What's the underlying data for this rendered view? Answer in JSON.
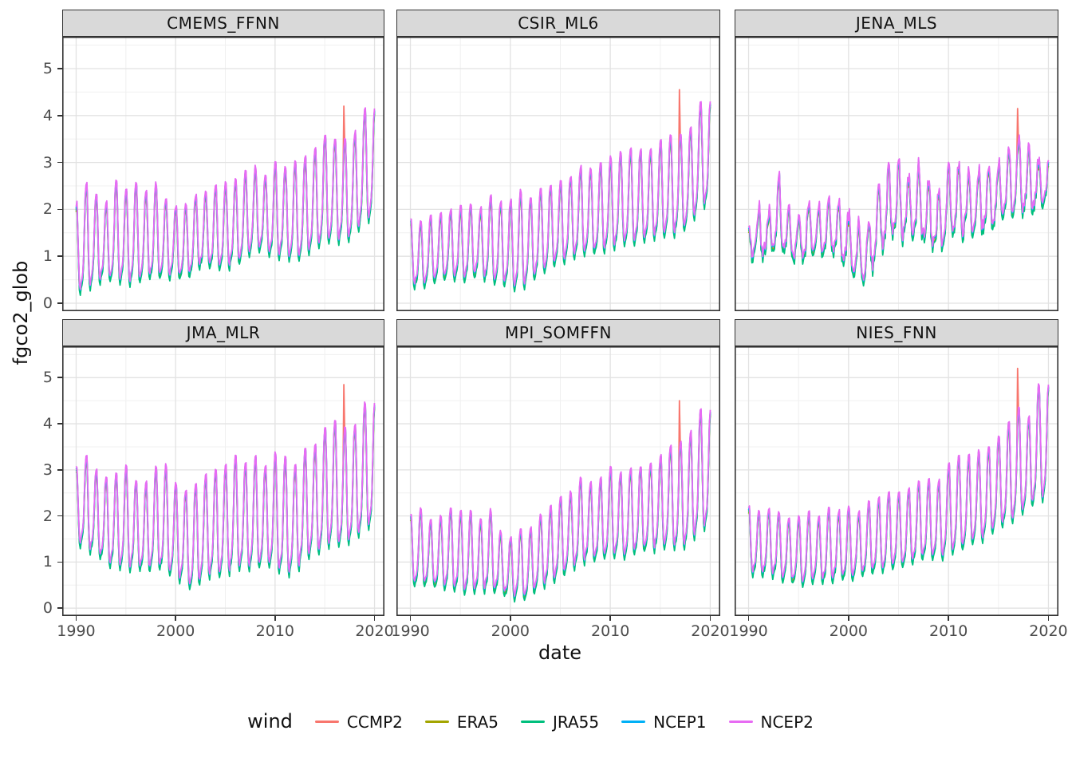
{
  "axes": {
    "x_title": "date",
    "y_title": "fgco2_glob",
    "x_ticks": [
      1990,
      2000,
      2010,
      2020
    ],
    "x_minor": [
      1995,
      2005,
      2015
    ],
    "y_ticks": [
      0,
      1,
      2,
      3,
      4,
      5
    ],
    "y_minor": [
      0.5,
      1.5,
      2.5,
      3.5,
      4.5,
      5.5
    ],
    "x_domain": [
      1988.6,
      2021.0
    ],
    "y_domain": [
      -0.17,
      5.68
    ]
  },
  "legend": {
    "title": "wind",
    "entries": [
      {
        "label": "CCMP2",
        "color": "#F8766D"
      },
      {
        "label": "ERA5",
        "color": "#A3A500"
      },
      {
        "label": "JRA55",
        "color": "#00BF7D"
      },
      {
        "label": "NCEP1",
        "color": "#00B0F6"
      },
      {
        "label": "NCEP2",
        "color": "#E76BF3"
      }
    ]
  },
  "chart_data": {
    "type": "line",
    "x_unit": "monthly, Jan 1990 - Jan 2020",
    "grid": "on",
    "legend_position": "bottom",
    "series": [
      {
        "name": "CCMP2",
        "color": "#F8766D",
        "peak_delta": -0.05,
        "trough_delta": -0.06
      },
      {
        "name": "ERA5",
        "color": "#A3A500",
        "peak_delta": -0.12,
        "trough_delta": -0.1
      },
      {
        "name": "JRA55",
        "color": "#00BF7D",
        "peak_delta": -0.08,
        "trough_delta": -0.13
      },
      {
        "name": "NCEP1",
        "color": "#00B0F6",
        "peak_delta": -0.04,
        "trough_delta": -0.02
      },
      {
        "name": "NCEP2",
        "color": "#E76BF3",
        "peak_delta": 0.0,
        "trough_delta": 0.0
      }
    ],
    "years": [
      1990,
      1991,
      1992,
      1993,
      1994,
      1995,
      1996,
      1997,
      1998,
      1999,
      2000,
      2001,
      2002,
      2003,
      2004,
      2005,
      2006,
      2007,
      2008,
      2009,
      2010,
      2011,
      2012,
      2013,
      2014,
      2015,
      2016,
      2017,
      2018,
      2019
    ],
    "facets": [
      {
        "title": "CMEMS_FFNN",
        "noise": 0.04,
        "peaks": [
          2.1,
          2.55,
          2.35,
          2.1,
          2.65,
          2.45,
          2.6,
          2.4,
          2.55,
          2.2,
          2.05,
          2.1,
          2.3,
          2.35,
          2.5,
          2.55,
          2.65,
          2.8,
          2.9,
          2.7,
          3.0,
          2.9,
          3.0,
          3.1,
          3.3,
          3.6,
          3.5,
          3.5,
          3.6,
          4.15
        ],
        "troughs": [
          0.25,
          0.3,
          0.45,
          0.55,
          0.5,
          0.45,
          0.5,
          0.55,
          0.6,
          0.6,
          0.65,
          0.55,
          0.75,
          0.9,
          0.75,
          0.8,
          0.85,
          1.0,
          1.2,
          1.15,
          1.0,
          1.05,
          0.9,
          1.1,
          1.2,
          1.3,
          1.4,
          1.3,
          1.45,
          1.8
        ],
        "spike": {
          "series": "CCMP2",
          "t": 2016.92,
          "value": 4.2
        }
      },
      {
        "title": "CSIR_ML6",
        "noise": 0.04,
        "peaks": [
          1.8,
          1.75,
          1.85,
          1.9,
          2.0,
          2.05,
          2.1,
          2.0,
          2.3,
          2.15,
          2.2,
          2.4,
          2.25,
          2.45,
          2.5,
          2.6,
          2.7,
          2.9,
          2.85,
          2.95,
          3.1,
          3.2,
          3.3,
          3.25,
          3.3,
          3.45,
          3.6,
          3.6,
          3.7,
          4.3
        ],
        "troughs": [
          0.45,
          0.4,
          0.5,
          0.55,
          0.6,
          0.55,
          0.6,
          0.65,
          0.5,
          0.45,
          0.4,
          0.35,
          0.5,
          0.7,
          0.8,
          0.9,
          1.0,
          1.1,
          1.1,
          1.15,
          1.2,
          1.3,
          1.3,
          1.35,
          1.4,
          1.45,
          1.5,
          1.55,
          1.7,
          2.1
        ],
        "spike": {
          "series": "CCMP2",
          "t": 2016.92,
          "value": 4.55
        }
      },
      {
        "title": "JENA_MLS",
        "noise": 0.15,
        "peaks": [
          1.75,
          2.05,
          1.9,
          2.75,
          2.0,
          1.85,
          2.2,
          2.15,
          2.25,
          2.2,
          1.9,
          1.7,
          1.75,
          2.6,
          2.9,
          2.95,
          2.7,
          3.0,
          2.6,
          2.3,
          2.9,
          2.95,
          2.8,
          2.85,
          2.9,
          3.0,
          3.3,
          3.6,
          3.3,
          3.05
        ],
        "troughs": [
          0.9,
          1.1,
          1.05,
          1.3,
          1.0,
          0.95,
          1.1,
          1.05,
          1.15,
          1.1,
          0.8,
          0.5,
          0.55,
          1.2,
          1.4,
          1.5,
          1.4,
          1.5,
          1.3,
          1.1,
          1.5,
          1.55,
          1.5,
          1.6,
          1.7,
          1.8,
          1.9,
          2.1,
          2.0,
          2.1
        ],
        "spike": {
          "series": "CCMP2",
          "t": 2016.92,
          "value": 4.15
        }
      },
      {
        "title": "JMA_MLR",
        "noise": 0.04,
        "peaks": [
          3.05,
          3.3,
          3.0,
          2.85,
          2.9,
          3.1,
          2.75,
          2.7,
          3.05,
          3.1,
          2.7,
          2.55,
          2.7,
          2.9,
          3.0,
          3.1,
          3.3,
          3.1,
          3.3,
          3.1,
          3.35,
          3.3,
          3.1,
          3.45,
          3.5,
          3.9,
          4.1,
          3.9,
          3.95,
          4.45
        ],
        "troughs": [
          1.45,
          1.35,
          1.2,
          1.0,
          0.95,
          0.85,
          0.9,
          0.8,
          0.95,
          0.8,
          0.75,
          0.5,
          0.45,
          0.75,
          0.7,
          0.8,
          0.85,
          0.9,
          0.9,
          1.0,
          0.85,
          0.75,
          0.8,
          1.1,
          1.2,
          1.3,
          1.4,
          1.4,
          1.5,
          1.75
        ],
        "spike": {
          "series": "CCMP2",
          "t": 2016.92,
          "value": 4.85
        }
      },
      {
        "title": "MPI_SOMFFN",
        "noise": 0.04,
        "peaks": [
          2.0,
          2.15,
          1.9,
          2.0,
          2.2,
          2.1,
          2.1,
          1.9,
          2.15,
          1.65,
          1.55,
          1.75,
          1.7,
          2.0,
          2.2,
          2.4,
          2.5,
          2.8,
          2.75,
          2.8,
          3.05,
          2.95,
          3.0,
          3.05,
          3.15,
          3.3,
          3.5,
          3.6,
          3.8,
          4.3
        ],
        "troughs": [
          0.6,
          0.55,
          0.55,
          0.5,
          0.5,
          0.4,
          0.35,
          0.4,
          0.45,
          0.35,
          0.3,
          0.25,
          0.3,
          0.5,
          0.6,
          0.7,
          0.9,
          1.0,
          1.1,
          1.1,
          1.2,
          1.1,
          1.2,
          1.3,
          1.3,
          1.35,
          1.4,
          1.3,
          1.4,
          1.75
        ],
        "spike": {
          "series": "CCMP2",
          "t": 2016.92,
          "value": 4.5
        }
      },
      {
        "title": "NIES_FNN",
        "noise": 0.04,
        "peaks": [
          2.2,
          2.1,
          2.15,
          2.1,
          1.95,
          2.0,
          2.1,
          2.0,
          2.2,
          2.1,
          2.2,
          2.1,
          2.3,
          2.4,
          2.55,
          2.5,
          2.6,
          2.75,
          2.8,
          2.75,
          3.1,
          3.3,
          3.3,
          3.4,
          3.5,
          3.7,
          4.0,
          4.35,
          4.1,
          4.85
        ],
        "troughs": [
          0.85,
          0.75,
          0.8,
          0.7,
          0.65,
          0.6,
          0.55,
          0.65,
          0.6,
          0.7,
          0.65,
          0.75,
          0.8,
          0.85,
          0.9,
          0.95,
          1.0,
          1.1,
          1.15,
          1.1,
          1.2,
          1.3,
          1.4,
          1.5,
          1.6,
          1.8,
          1.9,
          2.0,
          2.2,
          2.4
        ],
        "spike": {
          "series": "CCMP2",
          "t": 2016.92,
          "value": 5.2
        }
      }
    ]
  }
}
